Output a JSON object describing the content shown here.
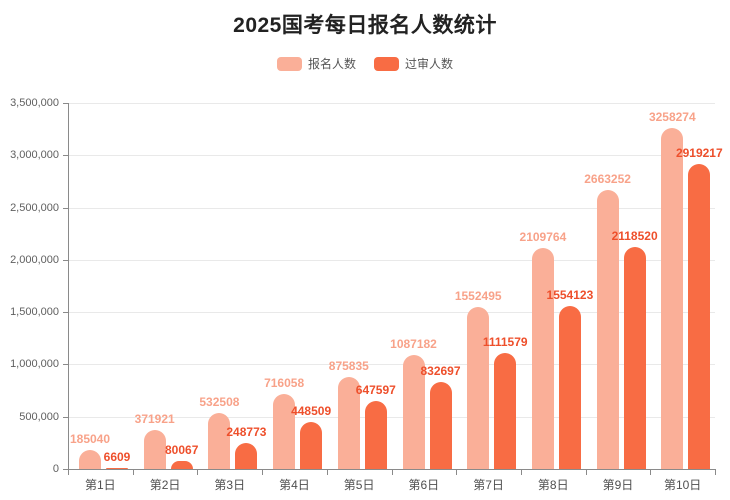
{
  "title": "2025国考每日报名人数统计",
  "colors": {
    "registered_bar": "#FAAF98",
    "approved_bar": "#F86C44",
    "registered_label": "#F8A289",
    "approved_label": "#EE4F2B",
    "axis": "#8a8a8a",
    "grid": "#e9e9e9",
    "title_text": "#222222",
    "tick_text": "#5f5f5f"
  },
  "chart_data": {
    "type": "bar",
    "title": "2025国考每日报名人数统计",
    "categories": [
      "第1日",
      "第2日",
      "第3日",
      "第4日",
      "第5日",
      "第6日",
      "第7日",
      "第8日",
      "第9日",
      "第10日"
    ],
    "series": [
      {
        "name": "报名人数",
        "color": "#FAAF98",
        "label_color": "#F8A289",
        "values": [
          185040,
          371921,
          532508,
          716058,
          875835,
          1087182,
          1552495,
          2109764,
          2663252,
          3258274
        ]
      },
      {
        "name": "过审人数",
        "color": "#F86C44",
        "label_color": "#EE4F2B",
        "values": [
          6609,
          80067,
          248773,
          448509,
          647597,
          832697,
          1111579,
          1554123,
          2118520,
          2919217
        ]
      }
    ],
    "xlabel": "",
    "ylabel": "",
    "ylim": [
      0,
      3500000
    ],
    "ytick_interval": 500000,
    "ytick_labels": [
      "0",
      "500,000",
      "1,000,000",
      "1,500,000",
      "2,000,000",
      "2,500,000",
      "3,000,000",
      "3,500,000"
    ],
    "grid": true,
    "legend_position": "top",
    "bar_labels_shown": true
  }
}
